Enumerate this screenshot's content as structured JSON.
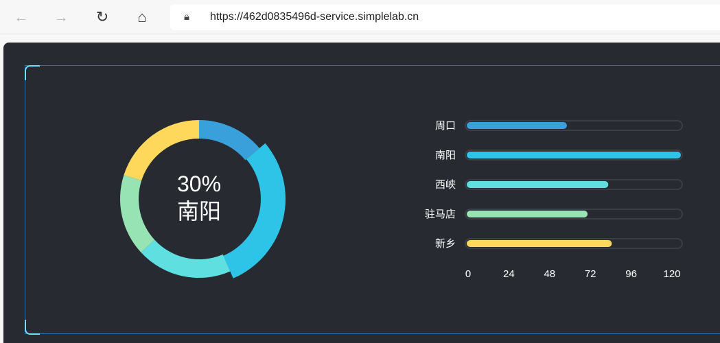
{
  "browser": {
    "url": "https://462d0835496d-service.simplelab.cn"
  },
  "chart_data": {
    "type": "bar+donut",
    "categories": [
      "周口",
      "南阳",
      "西峡",
      "驻马店",
      "新乡"
    ],
    "values": [
      58,
      124,
      82,
      70,
      84
    ],
    "colors": [
      "#3aa0dc",
      "#2ec4e8",
      "#5fdfe0",
      "#98e3b4",
      "#fdd85a"
    ],
    "x_ticks": [
      "0",
      "24",
      "48",
      "72",
      "96",
      "120"
    ],
    "xlim": [
      0,
      124
    ],
    "donut_center": {
      "percent": "30%",
      "label": "南阳"
    },
    "highlighted": "南阳"
  }
}
